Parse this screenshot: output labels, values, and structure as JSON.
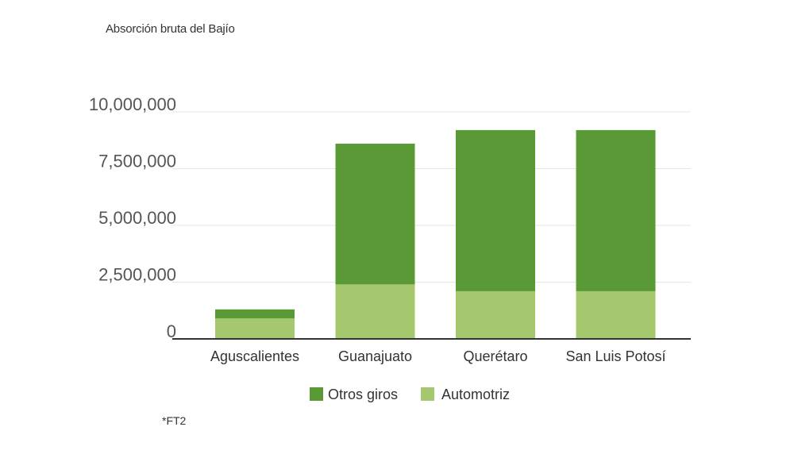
{
  "chart_data": {
    "type": "bar",
    "stacked": true,
    "title": "Absorción bruta del Bajío",
    "categories": [
      "Aguscalientes",
      "Guanajuato",
      "Querétaro",
      "San Luis Potosí"
    ],
    "series": [
      {
        "name": "Automotriz",
        "color": "#a5c86e",
        "values": [
          900000,
          2400000,
          2100000,
          2100000
        ]
      },
      {
        "name": "Otros giros",
        "color": "#5a9a36",
        "values": [
          400000,
          6200000,
          7100000,
          7100000
        ]
      }
    ],
    "ylim": [
      0,
      10000000
    ],
    "yticks": [
      0,
      2500000,
      5000000,
      7500000,
      10000000
    ],
    "ytick_labels": [
      "0",
      "2,500,000",
      "5,000,000",
      "7,500,000",
      "10,000,000"
    ],
    "grid": true,
    "legend_position": "bottom",
    "legend_order": [
      "Otros giros",
      "Automotriz"
    ],
    "footnote": "*FT2"
  }
}
